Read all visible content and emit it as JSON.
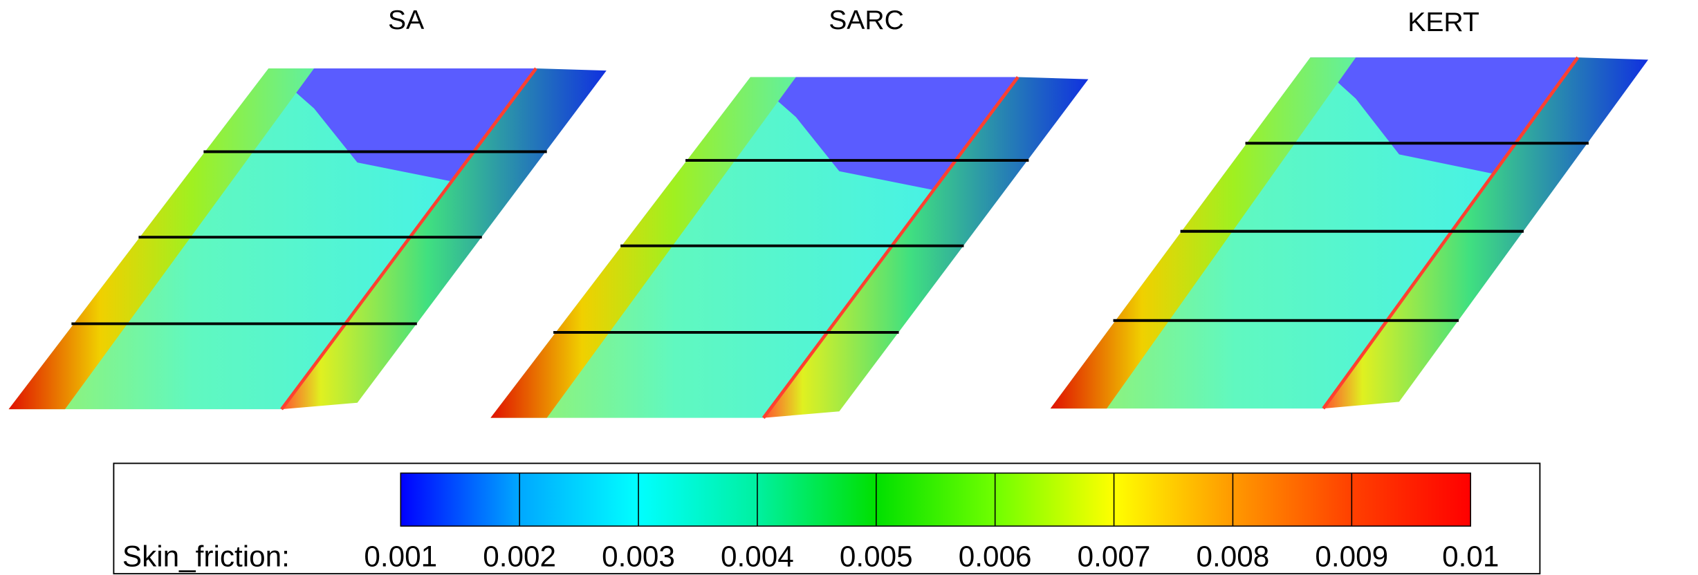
{
  "chart_data": {
    "type": "contour",
    "panels": [
      {
        "title": "SA"
      },
      {
        "title": "SARC"
      },
      {
        "title": "KERT"
      }
    ],
    "colorbar": {
      "label": "Skin_friction:",
      "ticks": [
        0.001,
        0.002,
        0.003,
        0.004,
        0.005,
        0.006,
        0.007,
        0.008,
        0.009,
        0.01
      ],
      "lim": [
        0.001,
        0.01
      ],
      "colors": [
        "#0000ff",
        "#00a8ff",
        "#00ffff",
        "#00f0a0",
        "#00e000",
        "#70ff00",
        "#ffff00",
        "#ff9900",
        "#ff4000",
        "#ff0000"
      ]
    }
  }
}
